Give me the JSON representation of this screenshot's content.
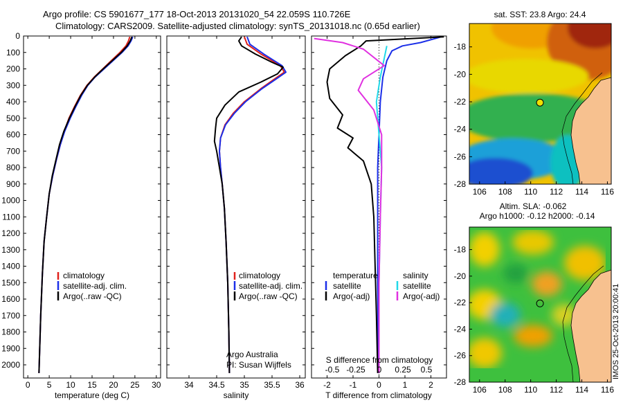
{
  "title_lines": [
    "Argo profile: CS 5901677_177 18-Oct-2013 20131020_54 22.059S 110.726E",
    "Climatology: CARS2009. Satellite-adjusted climatology: synTS_20131018.nc (0.65d earlier)"
  ],
  "footer_vertical": "IMOS 25-Oct-2013 20:00:41",
  "colors": {
    "climatology": "#e0201b",
    "satellite": "#1a2ee8",
    "argo": "#000000",
    "cyan": "#20d8e8",
    "magenta": "#e030e0"
  },
  "chart_data": [
    {
      "id": "temperature",
      "type": "line",
      "xlabel": "temperature (deg C)",
      "ylabel": "",
      "xlim": [
        -1,
        31
      ],
      "ylim": [
        0,
        2080
      ],
      "y_reversed": true,
      "xticks": [
        0,
        5,
        10,
        15,
        20,
        25,
        30
      ],
      "yticks": [
        0,
        100,
        200,
        300,
        400,
        500,
        600,
        700,
        800,
        900,
        1000,
        1100,
        1200,
        1300,
        1400,
        1500,
        1600,
        1700,
        1800,
        1900,
        2000
      ],
      "legend": [
        "climatology",
        "satellite-adj. clim.",
        "Argo(..raw -QC)"
      ],
      "series": [
        {
          "name": "climatology",
          "color": "#e0201b",
          "points": [
            [
              23.8,
              5
            ],
            [
              23.5,
              30
            ],
            [
              22.9,
              60
            ],
            [
              21.5,
              100
            ],
            [
              19.5,
              150
            ],
            [
              17.5,
              200
            ],
            [
              15.5,
              250
            ],
            [
              13.8,
              300
            ],
            [
              12.3,
              360
            ],
            [
              10.9,
              430
            ],
            [
              9.6,
              500
            ],
            [
              8.5,
              580
            ],
            [
              7.6,
              660
            ],
            [
              6.7,
              750
            ],
            [
              5.8,
              850
            ],
            [
              5.0,
              960
            ],
            [
              4.4,
              1100
            ],
            [
              3.8,
              1250
            ],
            [
              3.4,
              1450
            ],
            [
              3.0,
              1700
            ],
            [
              2.6,
              2050
            ]
          ]
        },
        {
          "name": "satellite-adj. clim.",
          "color": "#1a2ee8",
          "points": [
            [
              24.5,
              5
            ],
            [
              24.1,
              30
            ],
            [
              23.4,
              60
            ],
            [
              22.0,
              100
            ],
            [
              19.9,
              150
            ],
            [
              17.8,
              200
            ],
            [
              15.7,
              250
            ],
            [
              14.0,
              300
            ],
            [
              12.6,
              360
            ],
            [
              11.2,
              430
            ],
            [
              9.9,
              500
            ],
            [
              8.6,
              580
            ],
            [
              7.6,
              660
            ],
            [
              6.7,
              750
            ],
            [
              5.8,
              850
            ],
            [
              5.0,
              960
            ],
            [
              4.4,
              1100
            ],
            [
              3.8,
              1250
            ],
            [
              3.4,
              1450
            ],
            [
              3.0,
              1700
            ],
            [
              2.6,
              2050
            ]
          ]
        },
        {
          "name": "Argo(..raw -QC)",
          "color": "#000000",
          "points": [
            [
              24.3,
              5
            ],
            [
              23.9,
              30
            ],
            [
              23.2,
              60
            ],
            [
              21.8,
              100
            ],
            [
              19.7,
              150
            ],
            [
              17.6,
              200
            ],
            [
              15.6,
              250
            ],
            [
              13.9,
              300
            ],
            [
              12.4,
              360
            ],
            [
              11.0,
              430
            ],
            [
              9.7,
              500
            ],
            [
              8.4,
              580
            ],
            [
              7.4,
              660
            ],
            [
              6.6,
              750
            ],
            [
              5.7,
              850
            ],
            [
              5.0,
              960
            ],
            [
              4.4,
              1100
            ],
            [
              3.8,
              1250
            ],
            [
              3.4,
              1450
            ],
            [
              3.0,
              1700
            ],
            [
              2.6,
              2050
            ]
          ]
        }
      ]
    },
    {
      "id": "salinity",
      "type": "line",
      "xlabel": "salinity",
      "ylabel": "",
      "xlim": [
        33.6,
        36.1
      ],
      "ylim": [
        0,
        2080
      ],
      "y_reversed": true,
      "xticks": [
        34,
        34.5,
        35,
        35.5,
        36
      ],
      "legend": [
        "climatology",
        "satellite-adj. clim.",
        "Argo(..raw -QC)"
      ],
      "annotations": [
        "Argo Australia",
        "PI: Susan Wijffels"
      ],
      "series": [
        {
          "name": "climatology",
          "color": "#e0201b",
          "points": [
            [
              35.0,
              5
            ],
            [
              35.05,
              50
            ],
            [
              35.3,
              110
            ],
            [
              35.65,
              180
            ],
            [
              35.72,
              220
            ],
            [
              35.55,
              260
            ],
            [
              35.3,
              320
            ],
            [
              35.0,
              400
            ],
            [
              34.8,
              470
            ],
            [
              34.65,
              540
            ],
            [
              34.57,
              620
            ],
            [
              34.55,
              700
            ],
            [
              34.57,
              800
            ],
            [
              34.6,
              900
            ],
            [
              34.64,
              1050
            ],
            [
              34.67,
              1250
            ],
            [
              34.7,
              1500
            ],
            [
              34.72,
              1800
            ],
            [
              34.73,
              2050
            ]
          ]
        },
        {
          "name": "satellite-adj. clim.",
          "color": "#1a2ee8",
          "points": [
            [
              35.05,
              5
            ],
            [
              35.1,
              50
            ],
            [
              35.35,
              110
            ],
            [
              35.68,
              180
            ],
            [
              35.75,
              220
            ],
            [
              35.58,
              260
            ],
            [
              35.32,
              320
            ],
            [
              35.02,
              400
            ],
            [
              34.82,
              470
            ],
            [
              34.66,
              540
            ],
            [
              34.57,
              620
            ],
            [
              34.55,
              700
            ],
            [
              34.57,
              800
            ],
            [
              34.6,
              900
            ],
            [
              34.64,
              1050
            ],
            [
              34.67,
              1250
            ],
            [
              34.7,
              1500
            ],
            [
              34.72,
              1800
            ],
            [
              34.73,
              2050
            ]
          ]
        },
        {
          "name": "Argo(..raw -QC)",
          "color": "#000000",
          "points": [
            [
              34.95,
              5
            ],
            [
              34.9,
              30
            ],
            [
              34.95,
              60
            ],
            [
              35.2,
              110
            ],
            [
              35.5,
              160
            ],
            [
              35.7,
              190
            ],
            [
              35.6,
              230
            ],
            [
              35.3,
              280
            ],
            [
              34.9,
              340
            ],
            [
              34.65,
              420
            ],
            [
              34.5,
              500
            ],
            [
              34.48,
              560
            ],
            [
              34.46,
              640
            ],
            [
              34.5,
              700
            ],
            [
              34.55,
              800
            ],
            [
              34.6,
              900
            ],
            [
              34.64,
              1050
            ],
            [
              34.67,
              1250
            ],
            [
              34.7,
              1500
            ],
            [
              34.72,
              1800
            ],
            [
              34.73,
              2050
            ]
          ]
        }
      ]
    },
    {
      "id": "difference",
      "type": "line",
      "xlabel": "T difference from climatology",
      "top_xlabel": "S difference from climatology",
      "xlim": [
        -2.6,
        2.6
      ],
      "ylim": [
        0,
        2080
      ],
      "y_reversed": true,
      "xticks": [
        -2,
        -1,
        0,
        1,
        2
      ],
      "top_xtick_labels": [
        "-0.5",
        "-0.25",
        "0",
        "0.25",
        "0.5"
      ],
      "legend_left_title": "temperature",
      "legend_right_title": "salinity",
      "legend_left": [
        "satellite",
        "Argo(-adj)"
      ],
      "legend_right": [
        "satellite",
        "Argo(-adj)"
      ],
      "series": [
        {
          "name": "temperature satellite",
          "color": "#1a2ee8",
          "points": [
            [
              2.4,
              5
            ],
            [
              1.6,
              40
            ],
            [
              0.9,
              60
            ],
            [
              0.5,
              90
            ],
            [
              0.3,
              150
            ],
            [
              0.15,
              250
            ],
            [
              0.05,
              400
            ],
            [
              0.0,
              600
            ],
            [
              -0.05,
              800
            ],
            [
              -0.05,
              1100
            ],
            [
              -0.05,
              1500
            ],
            [
              -0.03,
              2050
            ]
          ]
        },
        {
          "name": "temperature Argo(-adj)",
          "color": "#000000",
          "points": [
            [
              2.5,
              5
            ],
            [
              -0.5,
              30
            ],
            [
              -0.7,
              60
            ],
            [
              -1.3,
              120
            ],
            [
              -1.9,
              200
            ],
            [
              -2.0,
              280
            ],
            [
              -1.9,
              380
            ],
            [
              -1.4,
              480
            ],
            [
              -1.6,
              560
            ],
            [
              -1.0,
              620
            ],
            [
              -1.2,
              680
            ],
            [
              -0.6,
              760
            ],
            [
              -0.3,
              900
            ],
            [
              -0.2,
              1100
            ],
            [
              -0.15,
              1400
            ],
            [
              -0.1,
              1700
            ],
            [
              -0.05,
              2050
            ]
          ]
        },
        {
          "name": "salinity satellite",
          "color": "#20d8e8",
          "points": [
            [
              0.3,
              60
            ],
            [
              0.05,
              250
            ],
            [
              -0.1,
              400
            ],
            [
              0.0,
              600
            ],
            [
              0.1,
              800
            ],
            [
              0.05,
              1100
            ],
            [
              0.0,
              1500
            ],
            [
              0.0,
              2050
            ]
          ]
        },
        {
          "name": "salinity Argo(-adj)",
          "color": "#e030e0",
          "points": [
            [
              -2.5,
              15
            ],
            [
              -1.4,
              40
            ],
            [
              -0.6,
              80
            ],
            [
              0.2,
              180
            ],
            [
              -0.6,
              260
            ],
            [
              -0.8,
              330
            ],
            [
              -0.2,
              450
            ],
            [
              0.1,
              600
            ],
            [
              0.1,
              800
            ],
            [
              0.05,
              1100
            ],
            [
              0.0,
              1500
            ],
            [
              0.0,
              2050
            ]
          ]
        }
      ]
    },
    {
      "id": "sst_map",
      "type": "heatmap",
      "title": "sat. SST: 23.8 Argo: 24.4",
      "xlim": [
        105.2,
        116.3
      ],
      "ylim": [
        -28,
        -16.3
      ],
      "xticks": [
        106,
        108,
        110,
        112,
        114,
        116
      ],
      "yticks": [
        -18,
        -20,
        -22,
        -24,
        -26,
        -28
      ],
      "argo_position": {
        "lon": 110.726,
        "lat": -22.059
      }
    },
    {
      "id": "sla_map",
      "type": "heatmap",
      "title_lines": [
        "Altim. SLA: -0.062",
        "Argo h1000: -0.12 h2000: -0.14"
      ],
      "xlim": [
        105.2,
        116.3
      ],
      "ylim": [
        -28,
        -16.3
      ],
      "xticks": [
        106,
        108,
        110,
        112,
        114,
        116
      ],
      "yticks": [
        -18,
        -20,
        -22,
        -24,
        -26,
        -28
      ],
      "argo_position": {
        "lon": 110.726,
        "lat": -22.059
      }
    }
  ]
}
